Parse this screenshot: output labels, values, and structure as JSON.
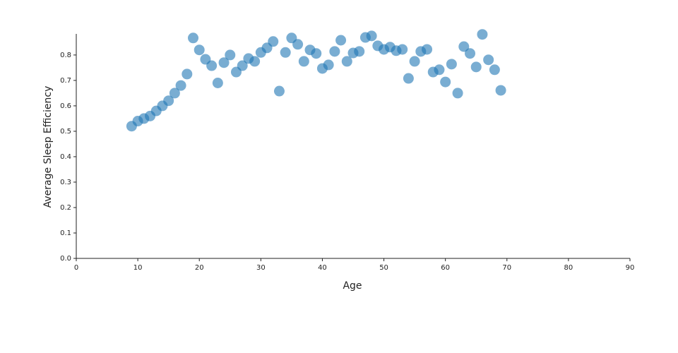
{
  "chart_data": {
    "type": "scatter",
    "x_label": "Age",
    "y_label": "Average Sleep Efficiency",
    "color": "#1f77b4",
    "x": [
      9,
      10,
      11,
      12,
      13,
      14,
      15,
      16,
      17,
      18,
      19,
      20,
      21,
      22,
      23,
      24,
      25,
      26,
      27,
      28,
      29,
      30,
      31,
      32,
      33,
      34,
      35,
      36,
      37,
      38,
      39,
      40,
      41,
      42,
      43,
      44,
      45,
      46,
      47,
      48,
      49,
      50,
      51,
      52,
      53,
      54,
      55,
      56,
      57,
      58,
      59,
      60,
      61,
      62,
      63,
      64,
      65,
      66,
      67,
      68,
      69
    ],
    "values": [
      0.52,
      0.54,
      0.55,
      0.56,
      0.58,
      0.6,
      0.62,
      0.65,
      0.68,
      0.725,
      0.867,
      0.82,
      0.783,
      0.758,
      0.69,
      0.77,
      0.8,
      0.733,
      0.758,
      0.786,
      0.775,
      0.81,
      0.828,
      0.853,
      0.658,
      0.81,
      0.867,
      0.842,
      0.775,
      0.82,
      0.806,
      0.747,
      0.761,
      0.814,
      0.858,
      0.775,
      0.808,
      0.814,
      0.869,
      0.875,
      0.836,
      0.822,
      0.831,
      0.817,
      0.822,
      0.708,
      0.775,
      0.814,
      0.822,
      0.733,
      0.742,
      0.694,
      0.764,
      0.65,
      0.833,
      0.806,
      0.753,
      0.881,
      0.781,
      0.742,
      0.661
    ],
    "xlim": [
      0,
      90
    ],
    "xticks": [
      0,
      10,
      20,
      30,
      40,
      50,
      60,
      70,
      80,
      90
    ],
    "ylim": [
      0,
      0.883
    ],
    "yticks": [
      {
        "value": 0,
        "label": "0.0"
      },
      0.1,
      0.2,
      0.3,
      0.4,
      0.5,
      0.6,
      0.7,
      0.8
    ],
    "grid": false
  }
}
